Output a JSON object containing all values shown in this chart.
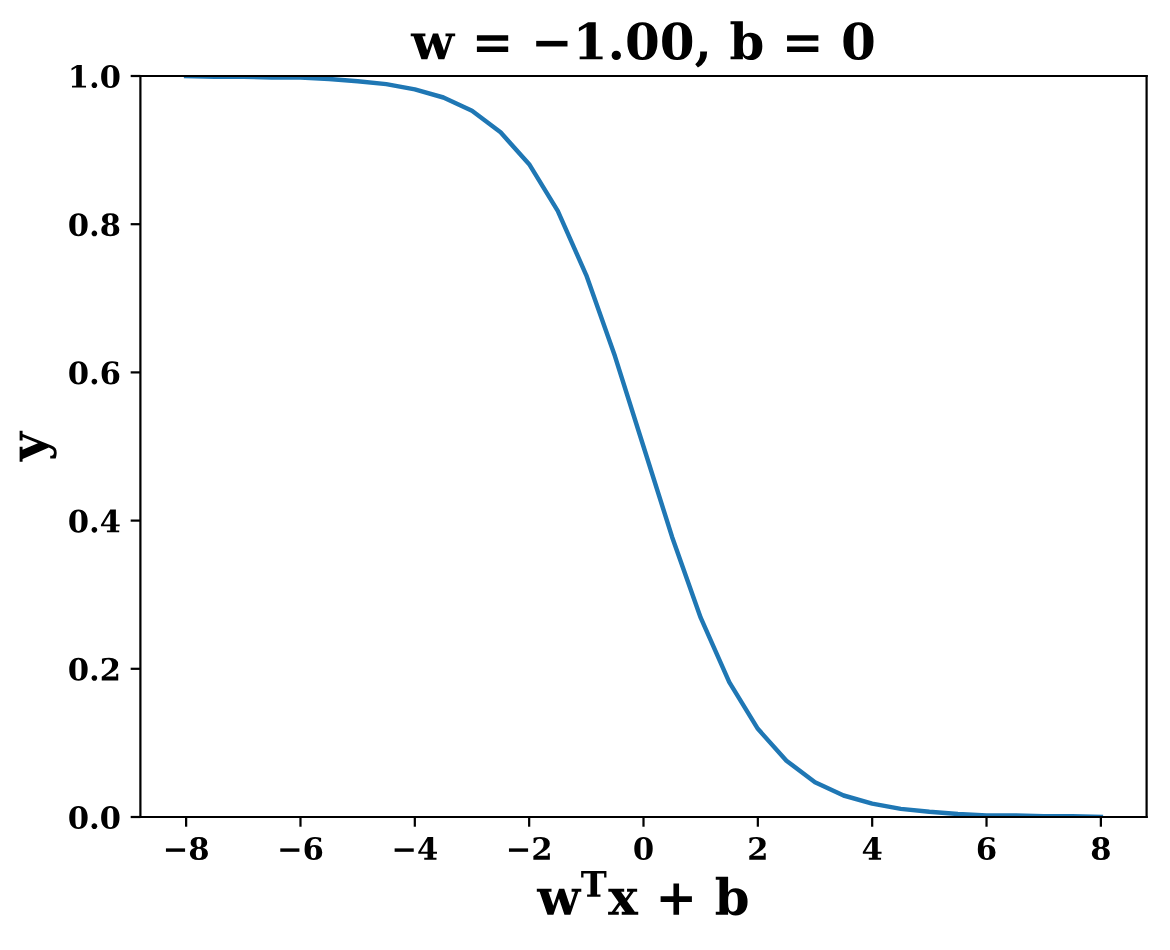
{
  "chart_data": {
    "type": "line",
    "title": "w = −1.00, b = 0",
    "xlabel": "w$^{T}$x + b",
    "ylabel": "y",
    "x": [
      -8,
      -7.5,
      -7,
      -6.5,
      -6,
      -5.5,
      -5,
      -4.5,
      -4,
      -3.5,
      -3,
      -2.5,
      -2,
      -1.5,
      -1,
      -0.5,
      0,
      0.5,
      1,
      1.5,
      2,
      2.5,
      3,
      3.5,
      4,
      4.5,
      5,
      5.5,
      6,
      6.5,
      7,
      7.5,
      8
    ],
    "series": [
      {
        "color": "#1f77b4",
        "values": [
          1.0,
          0.999,
          0.999,
          0.998,
          0.998,
          0.996,
          0.993,
          0.989,
          0.982,
          0.971,
          0.953,
          0.924,
          0.881,
          0.818,
          0.731,
          0.622,
          0.5,
          0.378,
          0.269,
          0.182,
          0.119,
          0.076,
          0.047,
          0.029,
          0.018,
          0.011,
          0.007,
          0.004,
          0.002,
          0.002,
          0.001,
          0.001,
          0.0
        ]
      }
    ],
    "xlim": [
      -8.8,
      8.8
    ],
    "ylim": [
      0,
      1
    ],
    "xticks": [
      {
        "value": -8,
        "label": "−8"
      },
      {
        "value": -6,
        "label": "−6"
      },
      {
        "value": -4,
        "label": "−4"
      },
      {
        "value": -2,
        "label": "−2"
      },
      0,
      2,
      4,
      6,
      8
    ],
    "yticks": [
      {
        "value": 0,
        "label": "0.0"
      },
      {
        "value": 0.2,
        "label": "0.2"
      },
      {
        "value": 0.4,
        "label": "0.4"
      },
      {
        "value": 0.6,
        "label": "0.6"
      },
      {
        "value": 0.8,
        "label": "0.8"
      },
      {
        "value": 1,
        "label": "1.0"
      }
    ],
    "grid": false,
    "line_style": "solid"
  }
}
